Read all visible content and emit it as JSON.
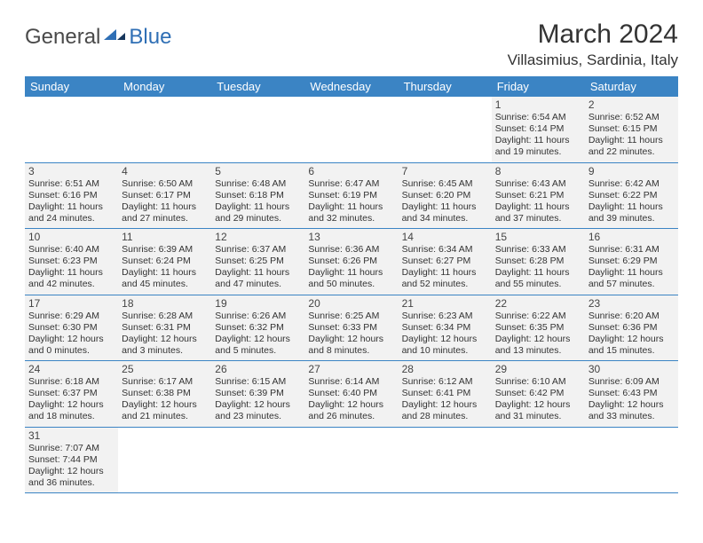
{
  "logo": {
    "text1": "General",
    "text2": "Blue",
    "accent_color": "#2f6fb5"
  },
  "header": {
    "month": "March 2024",
    "location": "Villasimius, Sardinia, Italy"
  },
  "colors": {
    "header_bg": "#3b84c4",
    "cell_bg": "#f2f2f2",
    "border": "#3b84c4",
    "text": "#333333"
  },
  "weekdays": [
    "Sunday",
    "Monday",
    "Tuesday",
    "Wednesday",
    "Thursday",
    "Friday",
    "Saturday"
  ],
  "weeks": [
    [
      null,
      null,
      null,
      null,
      null,
      {
        "d": "1",
        "sr": "6:54 AM",
        "ss": "6:14 PM",
        "dl": "11 hours and 19 minutes."
      },
      {
        "d": "2",
        "sr": "6:52 AM",
        "ss": "6:15 PM",
        "dl": "11 hours and 22 minutes."
      }
    ],
    [
      {
        "d": "3",
        "sr": "6:51 AM",
        "ss": "6:16 PM",
        "dl": "11 hours and 24 minutes."
      },
      {
        "d": "4",
        "sr": "6:50 AM",
        "ss": "6:17 PM",
        "dl": "11 hours and 27 minutes."
      },
      {
        "d": "5",
        "sr": "6:48 AM",
        "ss": "6:18 PM",
        "dl": "11 hours and 29 minutes."
      },
      {
        "d": "6",
        "sr": "6:47 AM",
        "ss": "6:19 PM",
        "dl": "11 hours and 32 minutes."
      },
      {
        "d": "7",
        "sr": "6:45 AM",
        "ss": "6:20 PM",
        "dl": "11 hours and 34 minutes."
      },
      {
        "d": "8",
        "sr": "6:43 AM",
        "ss": "6:21 PM",
        "dl": "11 hours and 37 minutes."
      },
      {
        "d": "9",
        "sr": "6:42 AM",
        "ss": "6:22 PM",
        "dl": "11 hours and 39 minutes."
      }
    ],
    [
      {
        "d": "10",
        "sr": "6:40 AM",
        "ss": "6:23 PM",
        "dl": "11 hours and 42 minutes."
      },
      {
        "d": "11",
        "sr": "6:39 AM",
        "ss": "6:24 PM",
        "dl": "11 hours and 45 minutes."
      },
      {
        "d": "12",
        "sr": "6:37 AM",
        "ss": "6:25 PM",
        "dl": "11 hours and 47 minutes."
      },
      {
        "d": "13",
        "sr": "6:36 AM",
        "ss": "6:26 PM",
        "dl": "11 hours and 50 minutes."
      },
      {
        "d": "14",
        "sr": "6:34 AM",
        "ss": "6:27 PM",
        "dl": "11 hours and 52 minutes."
      },
      {
        "d": "15",
        "sr": "6:33 AM",
        "ss": "6:28 PM",
        "dl": "11 hours and 55 minutes."
      },
      {
        "d": "16",
        "sr": "6:31 AM",
        "ss": "6:29 PM",
        "dl": "11 hours and 57 minutes."
      }
    ],
    [
      {
        "d": "17",
        "sr": "6:29 AM",
        "ss": "6:30 PM",
        "dl": "12 hours and 0 minutes."
      },
      {
        "d": "18",
        "sr": "6:28 AM",
        "ss": "6:31 PM",
        "dl": "12 hours and 3 minutes."
      },
      {
        "d": "19",
        "sr": "6:26 AM",
        "ss": "6:32 PM",
        "dl": "12 hours and 5 minutes."
      },
      {
        "d": "20",
        "sr": "6:25 AM",
        "ss": "6:33 PM",
        "dl": "12 hours and 8 minutes."
      },
      {
        "d": "21",
        "sr": "6:23 AM",
        "ss": "6:34 PM",
        "dl": "12 hours and 10 minutes."
      },
      {
        "d": "22",
        "sr": "6:22 AM",
        "ss": "6:35 PM",
        "dl": "12 hours and 13 minutes."
      },
      {
        "d": "23",
        "sr": "6:20 AM",
        "ss": "6:36 PM",
        "dl": "12 hours and 15 minutes."
      }
    ],
    [
      {
        "d": "24",
        "sr": "6:18 AM",
        "ss": "6:37 PM",
        "dl": "12 hours and 18 minutes."
      },
      {
        "d": "25",
        "sr": "6:17 AM",
        "ss": "6:38 PM",
        "dl": "12 hours and 21 minutes."
      },
      {
        "d": "26",
        "sr": "6:15 AM",
        "ss": "6:39 PM",
        "dl": "12 hours and 23 minutes."
      },
      {
        "d": "27",
        "sr": "6:14 AM",
        "ss": "6:40 PM",
        "dl": "12 hours and 26 minutes."
      },
      {
        "d": "28",
        "sr": "6:12 AM",
        "ss": "6:41 PM",
        "dl": "12 hours and 28 minutes."
      },
      {
        "d": "29",
        "sr": "6:10 AM",
        "ss": "6:42 PM",
        "dl": "12 hours and 31 minutes."
      },
      {
        "d": "30",
        "sr": "6:09 AM",
        "ss": "6:43 PM",
        "dl": "12 hours and 33 minutes."
      }
    ],
    [
      {
        "d": "31",
        "sr": "7:07 AM",
        "ss": "7:44 PM",
        "dl": "12 hours and 36 minutes."
      },
      null,
      null,
      null,
      null,
      null,
      null
    ]
  ],
  "labels": {
    "sunrise": "Sunrise:",
    "sunset": "Sunset:",
    "daylight": "Daylight:"
  }
}
